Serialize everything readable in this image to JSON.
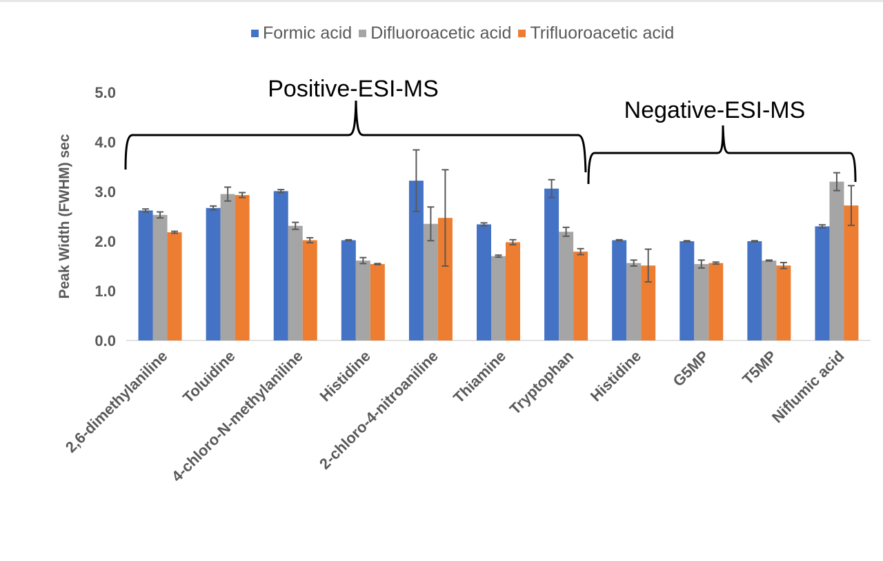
{
  "chart_data": {
    "type": "bar",
    "title": "",
    "xlabel": "",
    "ylabel": "Peak Width (FWHM) sec",
    "ylim": [
      0,
      5
    ],
    "yticks": [
      "0.0",
      "1.0",
      "2.0",
      "3.0",
      "4.0",
      "5.0"
    ],
    "grid": false,
    "legend_position": "top",
    "categories": [
      "2,6-dimethylaniline",
      "Toluidine",
      "4-chloro-N-methylaniline",
      "Histidine",
      "2-chloro-4-nitroaniline",
      "Thiamine",
      "Tryptophan",
      "Histidine",
      "G5MP",
      "T5MP",
      "Niflumic acid"
    ],
    "series": [
      {
        "name": "Formic acid",
        "color": "#4472c4",
        "values": [
          2.62,
          2.67,
          3.01,
          2.02,
          3.22,
          2.34,
          3.06,
          2.02,
          2.0,
          2.0,
          2.3
        ],
        "errors": [
          0.03,
          0.04,
          0.03,
          0.01,
          0.62,
          0.03,
          0.18,
          0.01,
          0.01,
          0.01,
          0.03
        ]
      },
      {
        "name": "Difluoroacetic acid",
        "color": "#a5a5a5",
        "values": [
          2.53,
          2.95,
          2.31,
          1.61,
          2.35,
          1.7,
          2.19,
          1.56,
          1.54,
          1.61,
          3.2
        ],
        "errors": [
          0.06,
          0.14,
          0.07,
          0.06,
          0.34,
          0.02,
          0.09,
          0.06,
          0.08,
          0.01,
          0.18
        ]
      },
      {
        "name": "Trifluoroacetic acid",
        "color": "#ed7d31",
        "values": [
          2.18,
          2.93,
          2.02,
          1.54,
          2.47,
          1.98,
          1.79,
          1.51,
          1.56,
          1.51,
          2.72
        ],
        "errors": [
          0.02,
          0.05,
          0.05,
          0.01,
          0.97,
          0.05,
          0.06,
          0.33,
          0.02,
          0.06,
          0.4
        ]
      }
    ],
    "annotations": [
      {
        "text": "Positive-ESI-MS",
        "spans_categories": [
          0,
          6
        ]
      },
      {
        "text": "Negative-ESI-MS",
        "spans_categories": [
          7,
          10
        ]
      }
    ]
  }
}
